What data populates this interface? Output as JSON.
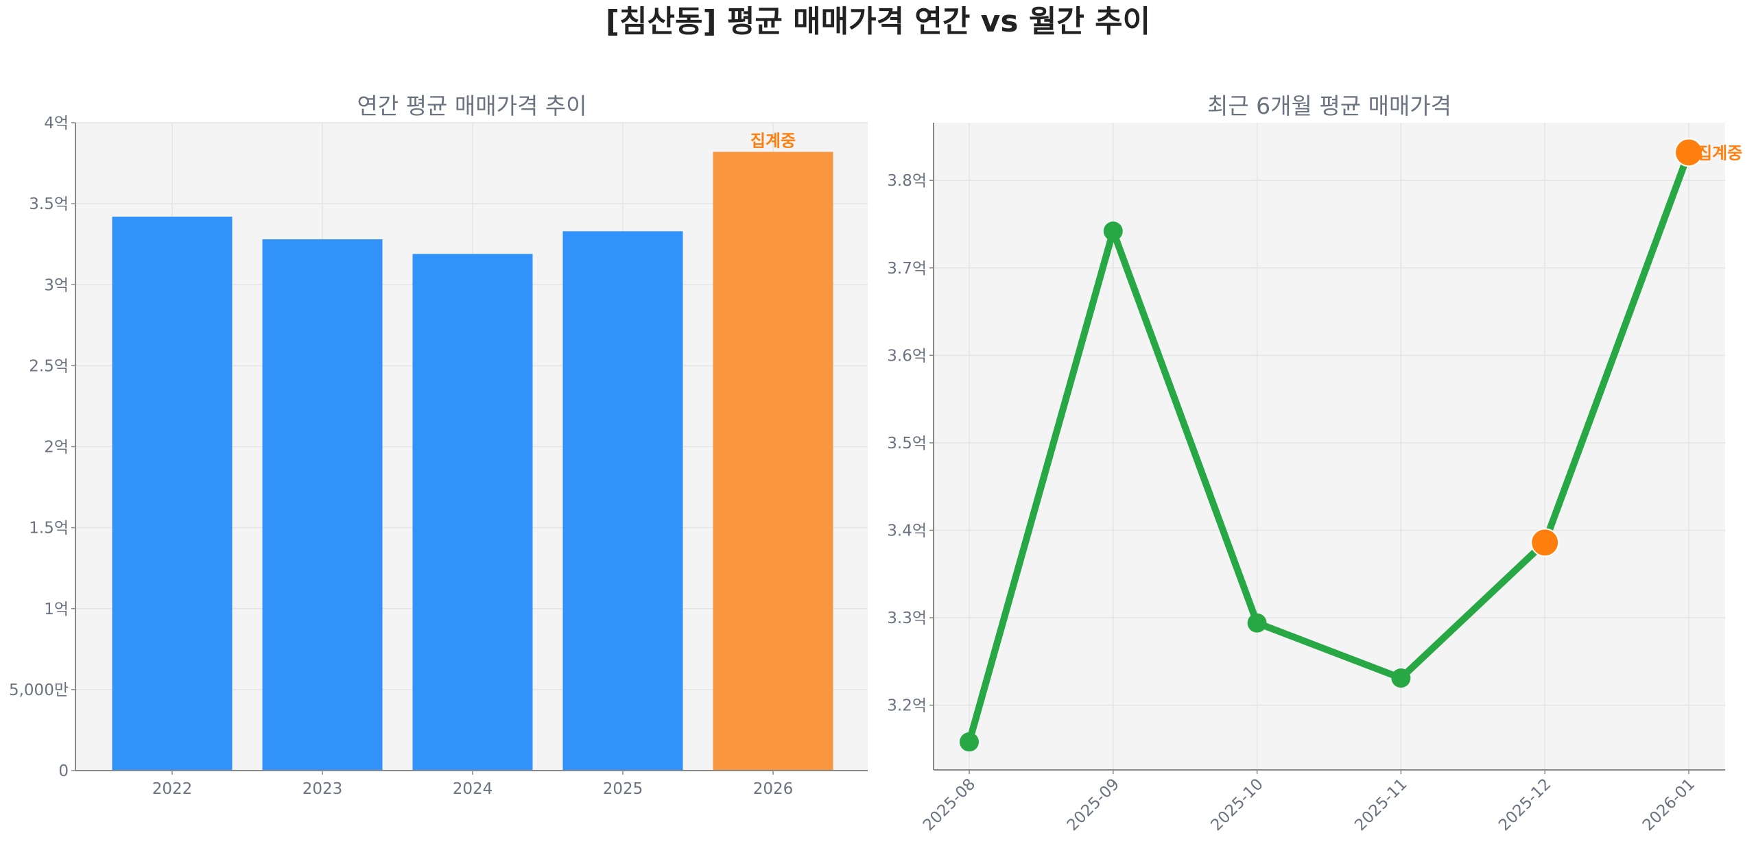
{
  "title": "[침산동] 평균 매매가격 연간 vs 월간 추이",
  "chart_data": [
    {
      "type": "bar",
      "title": "연간 평균 매매가격 추이",
      "categories": [
        "2022",
        "2023",
        "2024",
        "2025",
        "2026"
      ],
      "values": [
        3.42,
        3.28,
        3.19,
        3.33,
        3.82
      ],
      "unit": "억",
      "ylim": [
        0,
        4
      ],
      "yticks": [
        0,
        0.5,
        1,
        1.5,
        2,
        2.5,
        3,
        3.5,
        4
      ],
      "ytick_labels": [
        "0",
        "5,000만",
        "1억",
        "1.5억",
        "2억",
        "2.5억",
        "3억",
        "3.5억",
        "4억"
      ],
      "grid": true,
      "colors": {
        "default": "#3192fa",
        "highlight": "#f9963e"
      },
      "highlight_index": 4,
      "annotation": {
        "index": 4,
        "text": "집계중",
        "color": "#ff7f0e"
      }
    },
    {
      "type": "line",
      "title": "최근 6개월 평균 매매가격",
      "x": [
        "2025-08",
        "2025-09",
        "2025-10",
        "2025-11",
        "2025-12",
        "2026-01"
      ],
      "values": [
        3.158,
        3.742,
        3.294,
        3.231,
        3.386,
        3.832
      ],
      "unit": "억",
      "ylim": [
        3.126,
        3.866
      ],
      "yticks": [
        3.2,
        3.3,
        3.4,
        3.5,
        3.6,
        3.7,
        3.8
      ],
      "ytick_labels": [
        "3.2억",
        "3.3억",
        "3.4억",
        "3.5억",
        "3.6억",
        "3.7억",
        "3.8억"
      ],
      "grid": true,
      "line_color": "#28a745",
      "highlight_color": "#ff7f0e",
      "highlight_indices": [
        4,
        5
      ],
      "annotation": {
        "index": 5,
        "text": "집계중",
        "color": "#ff7f0e"
      }
    }
  ]
}
